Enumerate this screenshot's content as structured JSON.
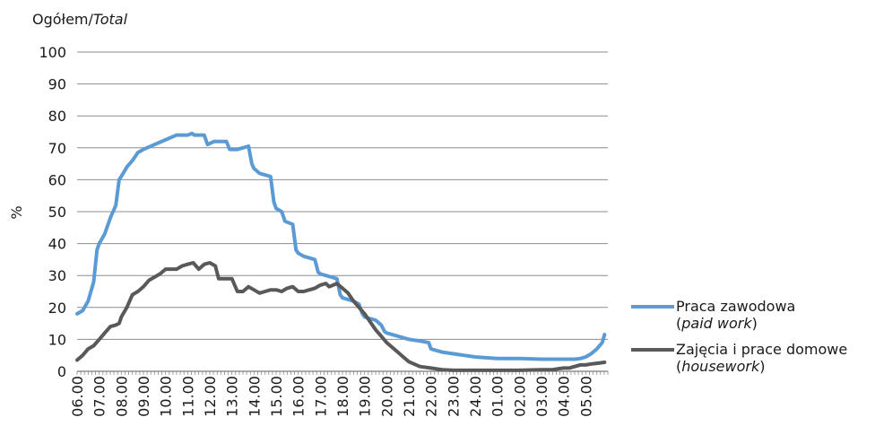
{
  "chart_data": {
    "type": "line",
    "title_main": "Ogółem/",
    "title_italic": "Total",
    "ylabel": "%",
    "ylim": [
      0,
      100
    ],
    "yticks": [
      0,
      10,
      20,
      30,
      40,
      50,
      60,
      70,
      80,
      90,
      100
    ],
    "grid": true,
    "legend_position": "right",
    "x_tick_labels": [
      "06.00",
      "07.00",
      "08.00",
      "09.00",
      "10.00",
      "11.00",
      "12.00",
      "13.00",
      "14.00",
      "15.00",
      "16.00",
      "17.00",
      "18.00",
      "19.00",
      "20.00",
      "21.00",
      "22.00",
      "23.00",
      "24.00",
      "01.00",
      "02.00",
      "03.00",
      "04.00",
      "05.00"
    ],
    "series": [
      {
        "name_main": "Praca zawodowa",
        "name_italic": "paid work",
        "color": "#5b9bd5",
        "points": [
          [
            6.0,
            18
          ],
          [
            6.25,
            19
          ],
          [
            6.5,
            22
          ],
          [
            6.75,
            28
          ],
          [
            6.9,
            38
          ],
          [
            7.0,
            40
          ],
          [
            7.25,
            43
          ],
          [
            7.5,
            48
          ],
          [
            7.75,
            52
          ],
          [
            7.9,
            60
          ],
          [
            8.0,
            61
          ],
          [
            8.25,
            64
          ],
          [
            8.5,
            66
          ],
          [
            8.75,
            68.5
          ],
          [
            9.0,
            69.5
          ],
          [
            9.5,
            71
          ],
          [
            10.0,
            72.5
          ],
          [
            10.5,
            74
          ],
          [
            11.0,
            74
          ],
          [
            11.2,
            74.5
          ],
          [
            11.3,
            74
          ],
          [
            11.75,
            74
          ],
          [
            11.9,
            71
          ],
          [
            12.2,
            72
          ],
          [
            12.75,
            72
          ],
          [
            12.9,
            69.5
          ],
          [
            13.25,
            69.5
          ],
          [
            13.5,
            70
          ],
          [
            13.75,
            70.5
          ],
          [
            13.9,
            65
          ],
          [
            14.0,
            63.5
          ],
          [
            14.25,
            62
          ],
          [
            14.5,
            61.5
          ],
          [
            14.75,
            61
          ],
          [
            14.9,
            53
          ],
          [
            15.0,
            51
          ],
          [
            15.25,
            50
          ],
          [
            15.4,
            47
          ],
          [
            15.75,
            46
          ],
          [
            15.9,
            38
          ],
          [
            16.0,
            37
          ],
          [
            16.25,
            36
          ],
          [
            16.5,
            35.5
          ],
          [
            16.75,
            35
          ],
          [
            16.9,
            31
          ],
          [
            17.0,
            30.5
          ],
          [
            17.25,
            30
          ],
          [
            17.5,
            29.5
          ],
          [
            17.75,
            29
          ],
          [
            17.9,
            24
          ],
          [
            18.0,
            23
          ],
          [
            18.25,
            22.5
          ],
          [
            18.5,
            22
          ],
          [
            18.75,
            21
          ],
          [
            18.9,
            18
          ],
          [
            19.0,
            17
          ],
          [
            19.5,
            16
          ],
          [
            19.75,
            14.5
          ],
          [
            19.9,
            12.5
          ],
          [
            20.0,
            12
          ],
          [
            20.5,
            11
          ],
          [
            20.75,
            10.5
          ],
          [
            21.0,
            10
          ],
          [
            21.5,
            9.5
          ],
          [
            21.9,
            9
          ],
          [
            22.0,
            7
          ],
          [
            22.5,
            6
          ],
          [
            23.0,
            5.5
          ],
          [
            23.5,
            5
          ],
          [
            24.0,
            4.5
          ],
          [
            25.0,
            4
          ],
          [
            26.0,
            4
          ],
          [
            27.0,
            3.8
          ],
          [
            28.0,
            3.8
          ],
          [
            28.5,
            3.8
          ],
          [
            28.75,
            4
          ],
          [
            29.0,
            4.5
          ],
          [
            29.25,
            5.5
          ],
          [
            29.5,
            7
          ],
          [
            29.75,
            9
          ],
          [
            29.85,
            11.5
          ]
        ]
      },
      {
        "name_main": "Zajęcia i prace domowe",
        "name_italic": "housework",
        "color": "#595959",
        "points": [
          [
            6.0,
            3.5
          ],
          [
            6.25,
            5
          ],
          [
            6.5,
            7
          ],
          [
            6.75,
            8
          ],
          [
            7.0,
            10
          ],
          [
            7.25,
            12
          ],
          [
            7.5,
            14
          ],
          [
            7.75,
            14.5
          ],
          [
            7.9,
            15
          ],
          [
            8.0,
            17
          ],
          [
            8.25,
            20
          ],
          [
            8.5,
            24
          ],
          [
            8.75,
            25
          ],
          [
            9.0,
            26.5
          ],
          [
            9.25,
            28.5
          ],
          [
            9.5,
            29.5
          ],
          [
            9.75,
            30.5
          ],
          [
            10.0,
            32
          ],
          [
            10.5,
            32
          ],
          [
            10.75,
            33
          ],
          [
            11.0,
            33.5
          ],
          [
            11.25,
            34
          ],
          [
            11.5,
            32
          ],
          [
            11.75,
            33.5
          ],
          [
            12.0,
            34
          ],
          [
            12.25,
            33
          ],
          [
            12.4,
            29
          ],
          [
            12.75,
            29
          ],
          [
            13.0,
            29
          ],
          [
            13.25,
            25
          ],
          [
            13.5,
            25
          ],
          [
            13.75,
            26.5
          ],
          [
            14.0,
            25.5
          ],
          [
            14.25,
            24.5
          ],
          [
            14.5,
            25
          ],
          [
            14.75,
            25.5
          ],
          [
            15.0,
            25.5
          ],
          [
            15.25,
            25
          ],
          [
            15.5,
            26
          ],
          [
            15.75,
            26.5
          ],
          [
            16.0,
            25
          ],
          [
            16.25,
            25
          ],
          [
            16.5,
            25.5
          ],
          [
            16.75,
            26
          ],
          [
            17.0,
            27
          ],
          [
            17.25,
            27.5
          ],
          [
            17.4,
            26.5
          ],
          [
            17.75,
            27.5
          ],
          [
            18.0,
            26
          ],
          [
            18.25,
            24.5
          ],
          [
            18.5,
            22
          ],
          [
            18.75,
            20
          ],
          [
            19.0,
            18
          ],
          [
            19.25,
            15.5
          ],
          [
            19.5,
            13
          ],
          [
            19.75,
            11
          ],
          [
            20.0,
            9
          ],
          [
            20.25,
            7.5
          ],
          [
            20.5,
            6
          ],
          [
            20.75,
            4.5
          ],
          [
            21.0,
            3
          ],
          [
            21.5,
            1.5
          ],
          [
            22.0,
            1
          ],
          [
            22.5,
            0.5
          ],
          [
            23.0,
            0.3
          ],
          [
            24.0,
            0.3
          ],
          [
            25.0,
            0.3
          ],
          [
            26.0,
            0.3
          ],
          [
            27.0,
            0.5
          ],
          [
            27.5,
            0.5
          ],
          [
            27.75,
            0.8
          ],
          [
            28.0,
            1
          ],
          [
            28.25,
            1
          ],
          [
            28.5,
            1.5
          ],
          [
            28.75,
            2
          ],
          [
            29.0,
            2
          ],
          [
            29.25,
            2.3
          ],
          [
            29.5,
            2.5
          ],
          [
            29.85,
            2.8
          ]
        ]
      }
    ]
  }
}
